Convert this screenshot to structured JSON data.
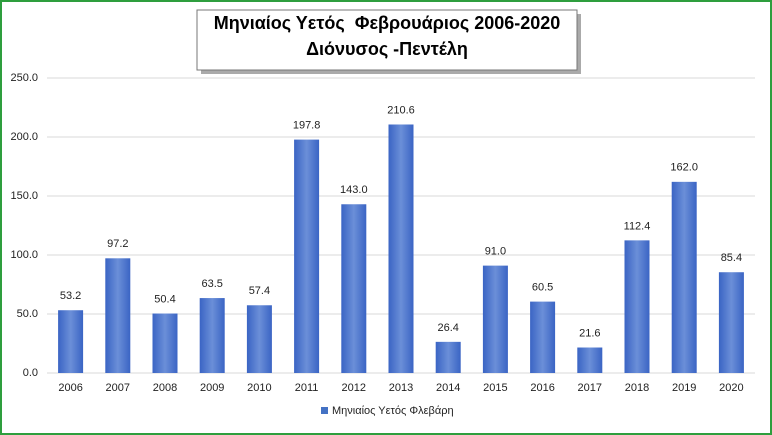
{
  "chart_data": {
    "type": "bar",
    "title": "Μηνιαίος Υετός  Φεβρουάριος 2006-2020",
    "subtitle": "Διόνυσος -Πεντέλη",
    "categories": [
      "2006",
      "2007",
      "2008",
      "2009",
      "2010",
      "2011",
      "2012",
      "2013",
      "2014",
      "2015",
      "2016",
      "2017",
      "2018",
      "2019",
      "2020"
    ],
    "series": [
      {
        "name": "Μηνιαίος Υετός Φλεβάρη",
        "color": "#4472c4",
        "values": [
          53.2,
          97.2,
          50.4,
          63.5,
          57.4,
          197.8,
          143.0,
          210.6,
          26.4,
          91.0,
          60.5,
          21.6,
          112.4,
          162.0,
          85.4
        ],
        "value_labels": [
          "53.2",
          "97.2",
          "50.4",
          "63.5",
          "57.4",
          "197.8",
          "143.0",
          "210.6",
          "26.4",
          "91.0",
          "60.5",
          "21.6",
          "112.4",
          "162.0",
          "85.4"
        ]
      }
    ],
    "ylim": [
      0,
      250
    ],
    "yticks": [
      {
        "value": 0,
        "label": "0.0"
      },
      {
        "value": 50,
        "label": "50.0"
      },
      {
        "value": 100,
        "label": "100.0"
      },
      {
        "value": 150,
        "label": "150.0"
      },
      {
        "value": 200,
        "label": "200.0"
      },
      {
        "value": 250,
        "label": "250.0"
      }
    ],
    "grid": true,
    "legend": "bottom"
  }
}
